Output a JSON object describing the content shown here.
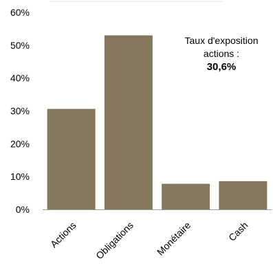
{
  "colors": {
    "bar": "#85775b",
    "axis": "#9a9a9a",
    "top_rule": "#e2e2e2"
  },
  "annotation": {
    "line1": "Taux d'exposition",
    "line2": "actions :",
    "value": "30,6%"
  },
  "chart_data": {
    "type": "bar",
    "categories": [
      "Actions",
      "Obligations",
      "Monétaire",
      "Cash"
    ],
    "values": [
      30.6,
      53.0,
      7.8,
      8.6
    ],
    "ylim": [
      0,
      60
    ],
    "yticks": [
      0,
      10,
      20,
      30,
      40,
      50,
      60
    ],
    "ytick_labels": [
      "0%",
      "10%",
      "20%",
      "30%",
      "40%",
      "50%",
      "60%"
    ],
    "grid": false,
    "title": "",
    "xlabel": "",
    "ylabel": ""
  }
}
